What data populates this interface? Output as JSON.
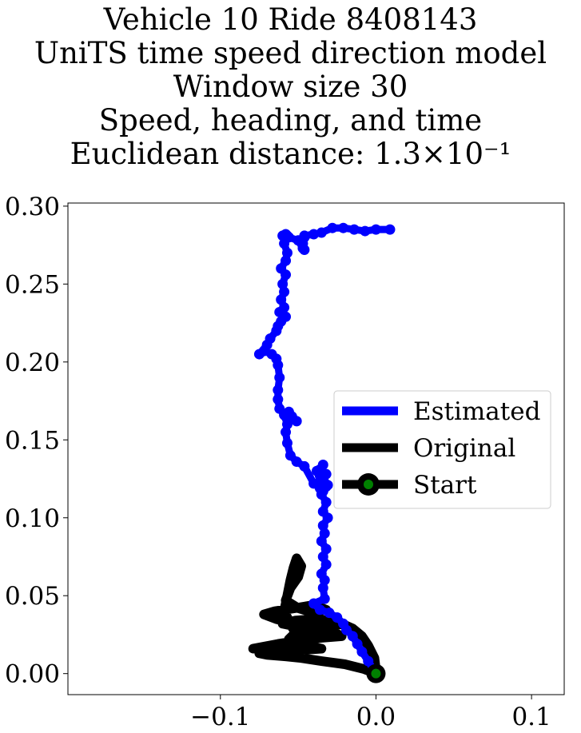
{
  "chart_data": {
    "type": "line",
    "title_lines": [
      "Vehicle 10 Ride 8408143",
      "UniTS time speed direction model",
      "Window size 30",
      "Speed, heading, and time",
      "Euclidean distance: 1.3×10⁻¹"
    ],
    "xlim": [
      -0.198,
      0.121
    ],
    "ylim": [
      -0.0135,
      0.302
    ],
    "x_ticks": [
      {
        "value": -0.1,
        "label": "−0.1"
      },
      {
        "value": 0.0,
        "label": "0.0"
      },
      {
        "value": 0.1,
        "label": "0.1"
      }
    ],
    "y_ticks": [
      {
        "value": 0.0,
        "label": "0.00"
      },
      {
        "value": 0.05,
        "label": "0.05"
      },
      {
        "value": 0.1,
        "label": "0.10"
      },
      {
        "value": 0.15,
        "label": "0.15"
      },
      {
        "value": 0.2,
        "label": "0.20"
      },
      {
        "value": 0.25,
        "label": "0.25"
      },
      {
        "value": 0.3,
        "label": "0.30"
      }
    ],
    "grid": false,
    "legend_position": "center-right",
    "series": [
      {
        "name": "Estimated",
        "color": "#0000ff",
        "x": [
          0.0,
          -0.005,
          -0.009,
          -0.012,
          -0.015,
          -0.019,
          -0.021,
          -0.025,
          -0.03,
          -0.036,
          -0.04,
          -0.033,
          -0.034,
          -0.033,
          -0.035,
          -0.032,
          -0.034,
          -0.032,
          -0.035,
          -0.033,
          -0.034,
          -0.031,
          -0.034,
          -0.032,
          -0.035,
          -0.032,
          -0.034,
          -0.032,
          -0.036,
          -0.034,
          -0.038,
          -0.036,
          -0.034,
          -0.031,
          -0.034,
          -0.036,
          -0.04,
          -0.046,
          -0.051,
          -0.055,
          -0.057,
          -0.058,
          -0.057,
          -0.059,
          -0.056,
          -0.054,
          -0.051,
          -0.058,
          -0.062,
          -0.063,
          -0.063,
          -0.062,
          -0.063,
          -0.064,
          -0.067,
          -0.072,
          -0.075,
          -0.07,
          -0.068,
          -0.064,
          -0.063,
          -0.061,
          -0.058,
          -0.062,
          -0.059,
          -0.061,
          -0.059,
          -0.06,
          -0.058,
          -0.061,
          -0.058,
          -0.057,
          -0.059,
          -0.057,
          -0.058,
          -0.06,
          -0.056,
          -0.05,
          -0.047,
          -0.046,
          -0.047,
          -0.046,
          -0.046,
          -0.04,
          -0.035,
          -0.028,
          -0.021,
          -0.014,
          -0.007,
          0.0,
          0.009
        ],
        "y": [
          0.0,
          0.008,
          0.014,
          0.019,
          0.024,
          0.028,
          0.032,
          0.036,
          0.039,
          0.041,
          0.045,
          0.048,
          0.055,
          0.06,
          0.064,
          0.07,
          0.075,
          0.08,
          0.085,
          0.09,
          0.095,
          0.1,
          0.104,
          0.11,
          0.115,
          0.12,
          0.124,
          0.128,
          0.131,
          0.134,
          0.13,
          0.127,
          0.126,
          0.121,
          0.117,
          0.119,
          0.122,
          0.133,
          0.136,
          0.14,
          0.148,
          0.155,
          0.16,
          0.166,
          0.168,
          0.165,
          0.162,
          0.165,
          0.17,
          0.176,
          0.182,
          0.19,
          0.198,
          0.202,
          0.205,
          0.207,
          0.205,
          0.211,
          0.215,
          0.22,
          0.223,
          0.226,
          0.229,
          0.232,
          0.235,
          0.24,
          0.245,
          0.25,
          0.256,
          0.26,
          0.265,
          0.27,
          0.276,
          0.281,
          0.282,
          0.281,
          0.28,
          0.278,
          0.273,
          0.272,
          0.276,
          0.28,
          0.281,
          0.282,
          0.283,
          0.286,
          0.286,
          0.285,
          0.284,
          0.285,
          0.285
        ]
      },
      {
        "name": "Original",
        "color": "#000000",
        "x": [
          0.0,
          -0.008,
          -0.02,
          -0.035,
          -0.048,
          -0.058,
          -0.07,
          -0.075,
          -0.066,
          -0.05,
          -0.035,
          -0.045,
          -0.058,
          -0.068,
          -0.079,
          -0.063,
          -0.05,
          -0.035,
          -0.022,
          -0.028,
          -0.04,
          -0.05,
          -0.06,
          -0.052,
          -0.04,
          -0.028,
          -0.025,
          -0.038,
          -0.052,
          -0.064,
          -0.072,
          -0.065,
          -0.052,
          -0.04,
          -0.032,
          -0.04,
          -0.05,
          -0.058,
          -0.055,
          -0.05,
          -0.048,
          -0.051,
          -0.053,
          -0.055,
          -0.057,
          -0.059,
          -0.054,
          -0.049,
          -0.046,
          -0.044,
          -0.047,
          -0.052,
          -0.056,
          -0.052,
          -0.046,
          -0.04,
          -0.034,
          -0.028,
          -0.022,
          -0.015,
          -0.009,
          -0.005,
          -0.001,
          0.0
        ],
        "y": [
          0.0,
          0.003,
          0.006,
          0.008,
          0.01,
          0.011,
          0.012,
          0.013,
          0.014,
          0.015,
          0.016,
          0.018,
          0.019,
          0.018,
          0.016,
          0.019,
          0.021,
          0.023,
          0.024,
          0.027,
          0.029,
          0.03,
          0.032,
          0.034,
          0.035,
          0.034,
          0.031,
          0.03,
          0.032,
          0.035,
          0.038,
          0.04,
          0.042,
          0.044,
          0.041,
          0.039,
          0.042,
          0.047,
          0.055,
          0.062,
          0.069,
          0.074,
          0.068,
          0.06,
          0.05,
          0.04,
          0.03,
          0.022,
          0.018,
          0.024,
          0.028,
          0.026,
          0.022,
          0.018,
          0.02,
          0.024,
          0.027,
          0.03,
          0.032,
          0.029,
          0.024,
          0.018,
          0.01,
          0.002
        ]
      }
    ],
    "start_point": {
      "name": "Start",
      "x": 0.0,
      "y": 0.0,
      "fill": "#008000",
      "edge": "#000000"
    }
  }
}
